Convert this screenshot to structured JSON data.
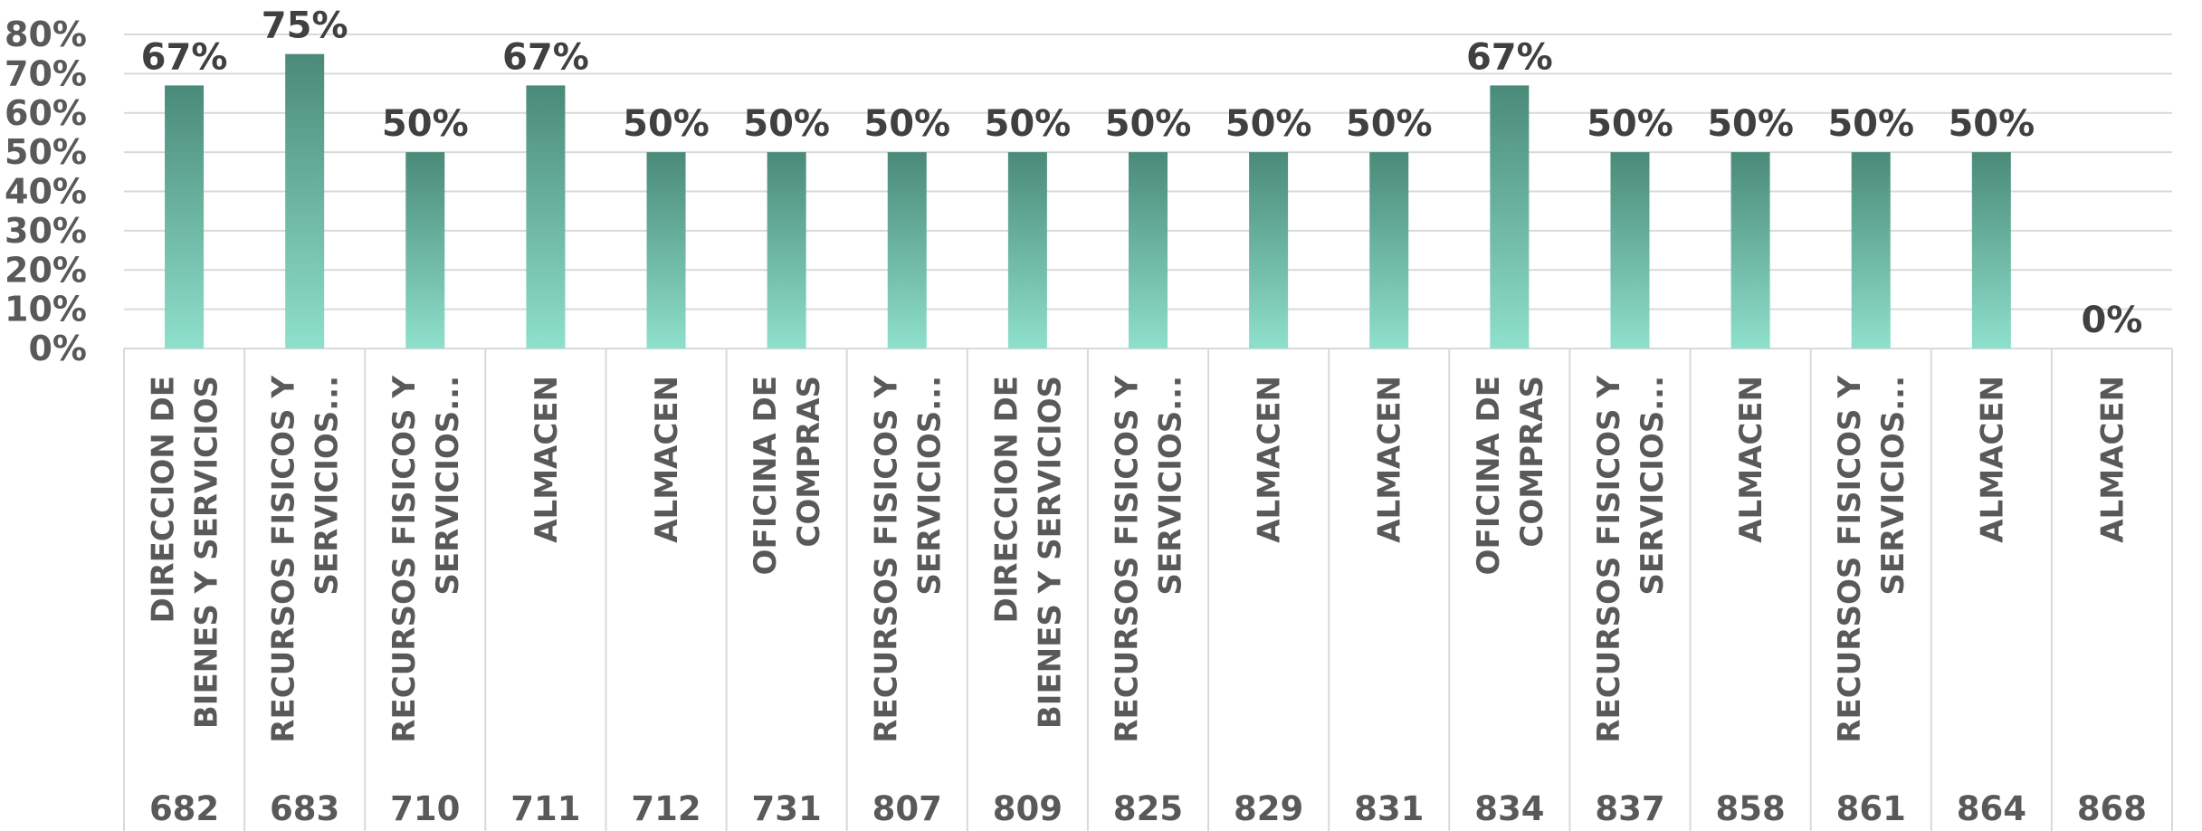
{
  "chart_data": {
    "type": "bar",
    "ylim": [
      0,
      80
    ],
    "yticks": [
      "0%",
      "10%",
      "20%",
      "30%",
      "40%",
      "50%",
      "60%",
      "70%",
      "80%"
    ],
    "grid": true,
    "colors": {
      "bar_top": "#4a8a78",
      "bar_bottom": "#8ee0cc",
      "grid": "#d9d9d9",
      "text": "#595959"
    },
    "categories": [
      {
        "code": "682",
        "name": [
          "DIRECCION DE",
          "BIENES Y SERVICIOS"
        ]
      },
      {
        "code": "683",
        "name": [
          "RECURSOS FISICOS Y",
          "SERVICIOS..."
        ]
      },
      {
        "code": "710",
        "name": [
          "RECURSOS FISICOS Y",
          "SERVICIOS..."
        ]
      },
      {
        "code": "711",
        "name": [
          "ALMACEN"
        ]
      },
      {
        "code": "712",
        "name": [
          "ALMACEN"
        ]
      },
      {
        "code": "731",
        "name": [
          "OFICINA DE",
          "COMPRAS"
        ]
      },
      {
        "code": "807",
        "name": [
          "RECURSOS FISICOS Y",
          "SERVICIOS..."
        ]
      },
      {
        "code": "809",
        "name": [
          "DIRECCION DE",
          "BIENES Y SERVICIOS"
        ]
      },
      {
        "code": "825",
        "name": [
          "RECURSOS FISICOS Y",
          "SERVICIOS..."
        ]
      },
      {
        "code": "829",
        "name": [
          "ALMACEN"
        ]
      },
      {
        "code": "831",
        "name": [
          "ALMACEN"
        ]
      },
      {
        "code": "834",
        "name": [
          "OFICINA DE",
          "COMPRAS"
        ]
      },
      {
        "code": "837",
        "name": [
          "RECURSOS FISICOS Y",
          "SERVICIOS..."
        ]
      },
      {
        "code": "858",
        "name": [
          "ALMACEN"
        ]
      },
      {
        "code": "861",
        "name": [
          "RECURSOS FISICOS Y",
          "SERVICIOS..."
        ]
      },
      {
        "code": "864",
        "name": [
          "ALMACEN"
        ]
      },
      {
        "code": "868",
        "name": [
          "ALMACEN"
        ]
      }
    ],
    "values": [
      67,
      75,
      50,
      67,
      50,
      50,
      50,
      50,
      50,
      50,
      50,
      67,
      50,
      50,
      50,
      50,
      0
    ],
    "data_labels": [
      "67%",
      "75%",
      "50%",
      "67%",
      "50%",
      "50%",
      "50%",
      "50%",
      "50%",
      "50%",
      "50%",
      "67%",
      "50%",
      "50%",
      "50%",
      "50%",
      "0%"
    ]
  }
}
